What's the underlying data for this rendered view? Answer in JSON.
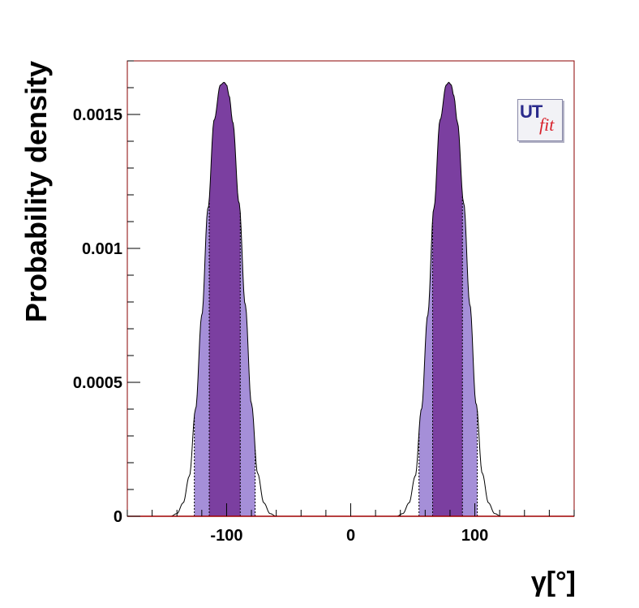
{
  "chart_data": {
    "type": "area",
    "title": "",
    "xlabel": "γ[°]",
    "ylabel": "Probability density",
    "xlim": [
      -180,
      180
    ],
    "ylim": [
      0,
      0.0017
    ],
    "x_ticks": [
      -100,
      0,
      100
    ],
    "x_tick_labels": [
      "-100",
      "0",
      "100"
    ],
    "y_ticks": [
      0,
      0.0005,
      0.001,
      0.0015
    ],
    "y_tick_labels": [
      "0",
      "0.0005",
      "0.001",
      "0.0015"
    ],
    "grid": false,
    "peaks": [
      {
        "x": [
          -145,
          -140,
          -135,
          -130,
          -125,
          -120,
          -115,
          -110,
          -105,
          -102,
          -100,
          -98,
          -95,
          -90,
          -85,
          -80,
          -75,
          -70,
          -65,
          -60
        ],
        "y": [
          0,
          1e-05,
          5e-05,
          0.00015,
          0.0004,
          0.00075,
          0.00115,
          0.00148,
          0.00161,
          0.00162,
          0.00161,
          0.00157,
          0.00147,
          0.00117,
          0.00079,
          0.00042,
          0.00016,
          5e-05,
          1e-05,
          0
        ],
        "interval_68": [
          -114,
          -89
        ],
        "interval_95": [
          -126,
          -77
        ]
      },
      {
        "x": [
          37,
          42,
          47,
          52,
          57,
          62,
          67,
          72,
          77,
          79,
          81,
          83,
          86,
          91,
          96,
          101,
          106,
          111,
          116,
          121
        ],
        "y": [
          0,
          1e-05,
          5e-05,
          0.00015,
          0.0004,
          0.00075,
          0.00115,
          0.00148,
          0.00161,
          0.00162,
          0.00161,
          0.00157,
          0.00147,
          0.00117,
          0.00079,
          0.00042,
          0.00016,
          5e-05,
          1e-05,
          0
        ],
        "interval_68": [
          66,
          90
        ],
        "interval_95": [
          55,
          102
        ]
      }
    ],
    "colors": {
      "interval_68": "#7b3fa0",
      "interval_95": "#a58fd8",
      "frame": "#8b0000",
      "baseline": "#cc0000"
    }
  },
  "logo": {
    "ut": "UT",
    "fit": "fit"
  }
}
